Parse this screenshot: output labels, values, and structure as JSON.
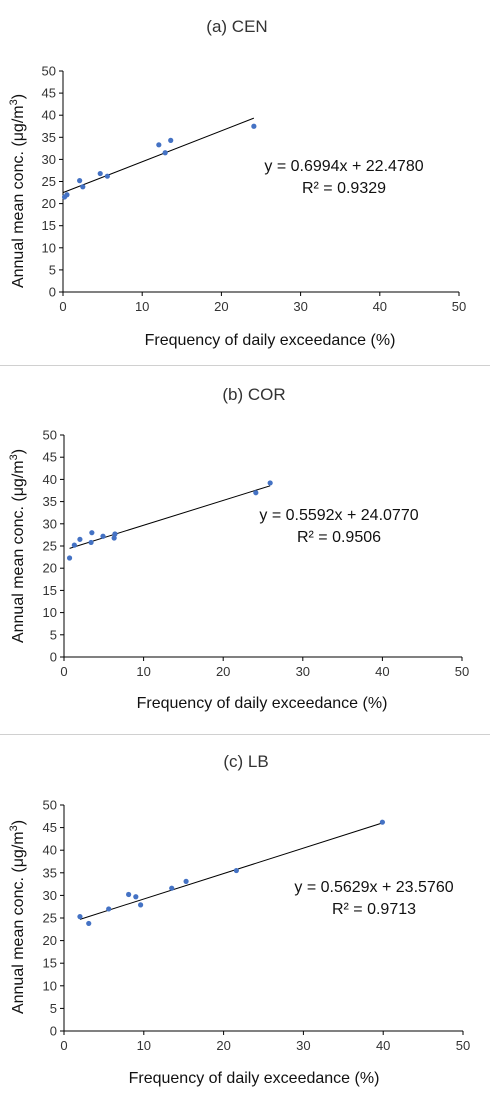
{
  "chart_data": [
    {
      "type": "scatter",
      "title": "(a) CEN",
      "xlabel": "Frequency of daily exceedance (%)",
      "ylabel_main": "Annual mean conc. (μg/m",
      "ylabel_sup": "3",
      "ylabel_end": ")",
      "xlim": [
        0,
        50
      ],
      "ylim": [
        0,
        50
      ],
      "xticks": [
        "0",
        "10",
        "20",
        "30",
        "40",
        "50"
      ],
      "yticks": [
        "0",
        "5",
        "10",
        "15",
        "20",
        "25",
        "30",
        "35",
        "40",
        "45",
        "50"
      ],
      "points": [
        {
          "x": 0.2,
          "y": 21.5
        },
        {
          "x": 0.5,
          "y": 22.0
        },
        {
          "x": 2.1,
          "y": 25.2
        },
        {
          "x": 2.5,
          "y": 23.8
        },
        {
          "x": 4.7,
          "y": 26.8
        },
        {
          "x": 5.6,
          "y": 26.2
        },
        {
          "x": 12.1,
          "y": 33.3
        },
        {
          "x": 12.9,
          "y": 31.5
        },
        {
          "x": 13.6,
          "y": 34.3
        },
        {
          "x": 24.1,
          "y": 37.5
        }
      ],
      "trendline": {
        "slope": 0.6994,
        "intercept": 22.478,
        "x_range": [
          0,
          24.1
        ]
      },
      "equation": "y = 0.6994x + 22.4780",
      "r2": "R² = 0.9329",
      "marker_color": "#4472c4"
    },
    {
      "type": "scatter",
      "title": "(b) COR",
      "xlabel": "Frequency of daily exceedance (%)",
      "ylabel_main": "Annual mean conc. (μg/m",
      "ylabel_sup": "3",
      "ylabel_end": ")",
      "xlim": [
        0,
        50
      ],
      "ylim": [
        0,
        50
      ],
      "xticks": [
        "0",
        "10",
        "20",
        "30",
        "40",
        "50"
      ],
      "yticks": [
        "0",
        "5",
        "10",
        "15",
        "20",
        "25",
        "30",
        "35",
        "40",
        "45",
        "50"
      ],
      "points": [
        {
          "x": 0.7,
          "y": 22.3
        },
        {
          "x": 1.3,
          "y": 25.2
        },
        {
          "x": 2.0,
          "y": 26.5
        },
        {
          "x": 3.4,
          "y": 25.8
        },
        {
          "x": 3.5,
          "y": 28.0
        },
        {
          "x": 4.9,
          "y": 27.2
        },
        {
          "x": 6.3,
          "y": 26.8
        },
        {
          "x": 6.4,
          "y": 27.7
        },
        {
          "x": 24.1,
          "y": 37.0
        },
        {
          "x": 25.9,
          "y": 39.2
        }
      ],
      "trendline": {
        "slope": 0.5592,
        "intercept": 24.077,
        "x_range": [
          0.7,
          25.9
        ]
      },
      "equation": "y = 0.5592x + 24.0770",
      "r2": "R² = 0.9506",
      "marker_color": "#4472c4"
    },
    {
      "type": "scatter",
      "title": "(c) LB",
      "xlabel": "Frequency of daily exceedance (%)",
      "ylabel_main": "Annual mean conc. (μg/m",
      "ylabel_sup": "3",
      "ylabel_end": ")",
      "xlim": [
        0,
        50
      ],
      "ylim": [
        0,
        50
      ],
      "xticks": [
        "0",
        "10",
        "20",
        "30",
        "40",
        "50"
      ],
      "yticks": [
        "0",
        "5",
        "10",
        "15",
        "20",
        "25",
        "30",
        "35",
        "40",
        "45",
        "50"
      ],
      "points": [
        {
          "x": 2.0,
          "y": 25.3
        },
        {
          "x": 3.1,
          "y": 23.8
        },
        {
          "x": 5.6,
          "y": 27.0
        },
        {
          "x": 8.1,
          "y": 30.2
        },
        {
          "x": 9.0,
          "y": 29.7
        },
        {
          "x": 9.6,
          "y": 27.9
        },
        {
          "x": 13.5,
          "y": 31.6
        },
        {
          "x": 15.3,
          "y": 33.1
        },
        {
          "x": 21.6,
          "y": 35.5
        },
        {
          "x": 39.9,
          "y": 46.2
        }
      ],
      "trendline": {
        "slope": 0.5629,
        "intercept": 23.576,
        "x_range": [
          2.0,
          39.9
        ]
      },
      "equation": "y = 0.5629x + 23.5760",
      "r2": "R² = 0.9713",
      "marker_color": "#4472c4"
    }
  ]
}
